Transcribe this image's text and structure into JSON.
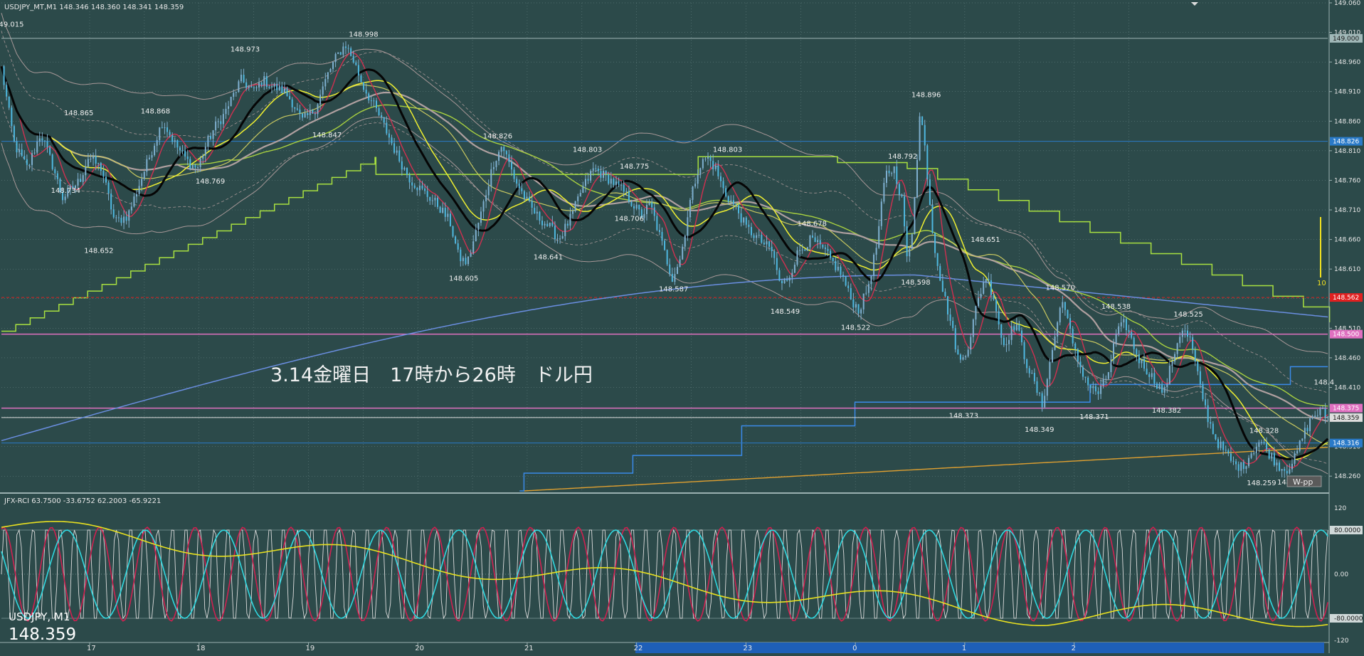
{
  "window": {
    "header": "USDJPY_MT,M1  148.346 148.360 148.341 148.359",
    "symbol_label": "USDJPY, M1",
    "last_price": "148.359"
  },
  "colors": {
    "background": "#2c4a4a",
    "grid": "#7f9a9a",
    "candle_up": "#7fb0d0",
    "candle_down": "#4fb8e0",
    "ma_black": "#050505",
    "ma_yellow": "#f0f030",
    "ma_olive": "#c8c860",
    "ma_crimson": "#d03050",
    "ma_green": "#a8d040",
    "ma_tan": "#b0a0a0",
    "bollinger": "#a89898",
    "ma_blue": "#6a8ee0",
    "ma_orange": "#e0a030",
    "step_green": "#a8e040",
    "step_blue": "#3a8ae8",
    "hline_blue": "#2a7ac8",
    "hline_magenta": "#e070c0",
    "hline_red": "#e02020",
    "rci_white": "#dddddd",
    "rci_red": "#d02050",
    "rci_cyan": "#30d8e0",
    "rci_yellow": "#e8e020"
  },
  "annotation": {
    "main_text": "3.14金曜日　17時から26時　ドル円",
    "w_pp_label": "W-pp",
    "vol_label": "10"
  },
  "chart_data": [
    {
      "type": "candlestick",
      "title": "USDJPY_MT,M1",
      "ylim": [
        148.235,
        149.06
      ],
      "y_ticks": [
        "149.060",
        "149.010",
        "148.960",
        "148.910",
        "148.860",
        "148.810",
        "148.760",
        "148.710",
        "148.660",
        "148.610",
        "148.560",
        "148.510",
        "148.460",
        "148.410",
        "148.360",
        "148.310",
        "148.260"
      ],
      "x_labels": [
        "17",
        "18",
        "19",
        "20",
        "21",
        "22",
        "23",
        "0",
        "1",
        "2"
      ],
      "close_path": [
        [
          0,
          148.95
        ],
        [
          0.015,
          148.82
        ],
        [
          0.03,
          148.78
        ],
        [
          0.045,
          148.84
        ],
        [
          0.06,
          148.78
        ],
        [
          0.07,
          148.73
        ],
        [
          0.09,
          148.76
        ],
        [
          0.1,
          148.8
        ],
        [
          0.115,
          148.78
        ],
        [
          0.125,
          148.72
        ],
        [
          0.13,
          148.69
        ],
        [
          0.145,
          148.7
        ],
        [
          0.155,
          148.74
        ],
        [
          0.165,
          148.78
        ],
        [
          0.175,
          148.82
        ],
        [
          0.185,
          148.86
        ],
        [
          0.2,
          148.82
        ],
        [
          0.215,
          148.79
        ],
        [
          0.225,
          148.78
        ],
        [
          0.235,
          148.82
        ],
        [
          0.245,
          148.85
        ],
        [
          0.255,
          148.87
        ],
        [
          0.265,
          148.9
        ],
        [
          0.275,
          148.93
        ],
        [
          0.29,
          148.91
        ],
        [
          0.3,
          148.93
        ],
        [
          0.31,
          148.92
        ],
        [
          0.325,
          148.91
        ],
        [
          0.335,
          148.89
        ],
        [
          0.345,
          148.86
        ],
        [
          0.36,
          148.88
        ],
        [
          0.375,
          148.94
        ],
        [
          0.385,
          148.97
        ],
        [
          0.395,
          148.99
        ],
        [
          0.405,
          148.96
        ],
        [
          0.415,
          148.92
        ],
        [
          0.43,
          148.88
        ],
        [
          0.44,
          148.85
        ],
        [
          0.455,
          148.8
        ],
        [
          0.47,
          148.76
        ],
        [
          0.485,
          148.74
        ],
        [
          0.5,
          148.72
        ],
        [
          0.515,
          148.69
        ],
        [
          0.525,
          148.63
        ],
        [
          0.535,
          148.62
        ],
        [
          0.55,
          148.7
        ],
        [
          0.565,
          148.79
        ],
        [
          0.575,
          148.82
        ],
        [
          0.59,
          148.76
        ],
        [
          0.605,
          148.72
        ],
        [
          0.615,
          148.7
        ],
        [
          0.63,
          148.68
        ],
        [
          0.64,
          148.66
        ],
        [
          0.655,
          148.7
        ],
        [
          0.665,
          148.74
        ],
        [
          0.68,
          148.78
        ],
        [
          0.7,
          148.76
        ],
        [
          0.715,
          148.74
        ],
        [
          0.725,
          148.72
        ],
        [
          0.735,
          148.7
        ],
        [
          0.745,
          148.72
        ],
        [
          0.755,
          148.67
        ],
        [
          0.765,
          148.62
        ],
        [
          0.77,
          148.595
        ],
        [
          0.78,
          148.63
        ],
        [
          0.79,
          148.72
        ],
        [
          0.8,
          148.78
        ],
        [
          0.81,
          148.8
        ],
        [
          0.82,
          148.78
        ],
        [
          0.83,
          148.74
        ],
        [
          0.845,
          148.71
        ],
        [
          0.855,
          148.68
        ],
        [
          0.87,
          148.66
        ],
        [
          0.885,
          148.64
        ],
        [
          0.895,
          148.58
        ],
        [
          0.905,
          148.6
        ],
        [
          0.915,
          148.64
        ],
        [
          0.93,
          148.66
        ],
        [
          0.945,
          148.64
        ],
        [
          0.955,
          148.62
        ],
        [
          0.965,
          148.6
        ],
        [
          0.975,
          148.56
        ],
        [
          0.985,
          148.54
        ],
        [
          0.995,
          148.58
        ],
        [
          1.005,
          148.65
        ],
        [
          1.015,
          148.77
        ],
        [
          1.025,
          148.78
        ],
        [
          1.035,
          148.72
        ],
        [
          1.04,
          148.62
        ],
        [
          1.045,
          148.66
        ],
        [
          1.055,
          148.88
        ],
        [
          1.06,
          148.82
        ],
        [
          1.07,
          148.66
        ],
        [
          1.08,
          148.58
        ],
        [
          1.09,
          148.52
        ],
        [
          1.1,
          148.45
        ],
        [
          1.11,
          148.48
        ],
        [
          1.12,
          148.55
        ],
        [
          1.13,
          148.6
        ],
        [
          1.14,
          148.56
        ],
        [
          1.15,
          148.48
        ],
        [
          1.165,
          148.52
        ],
        [
          1.175,
          148.46
        ],
        [
          1.185,
          148.42
        ],
        [
          1.195,
          148.38
        ],
        [
          1.205,
          148.46
        ],
        [
          1.215,
          148.54
        ],
        [
          1.22,
          148.56
        ],
        [
          1.23,
          148.48
        ],
        [
          1.24,
          148.44
        ],
        [
          1.25,
          148.41
        ],
        [
          1.26,
          148.4
        ],
        [
          1.27,
          148.43
        ],
        [
          1.28,
          148.5
        ],
        [
          1.29,
          148.52
        ],
        [
          1.305,
          148.46
        ],
        [
          1.315,
          148.44
        ],
        [
          1.325,
          148.42
        ],
        [
          1.335,
          148.4
        ],
        [
          1.345,
          148.46
        ],
        [
          1.355,
          148.51
        ],
        [
          1.365,
          148.49
        ],
        [
          1.375,
          148.42
        ],
        [
          1.385,
          148.36
        ],
        [
          1.395,
          148.32
        ],
        [
          1.405,
          148.3
        ],
        [
          1.415,
          148.28
        ],
        [
          1.425,
          148.275
        ],
        [
          1.435,
          148.3
        ],
        [
          1.445,
          148.32
        ],
        [
          1.455,
          148.3
        ],
        [
          1.465,
          148.28
        ],
        [
          1.475,
          148.27
        ],
        [
          1.485,
          148.29
        ],
        [
          1.495,
          148.33
        ],
        [
          1.505,
          148.36
        ],
        [
          1.515,
          148.37
        ],
        [
          1.523,
          148.359
        ]
      ],
      "price_labels": [
        {
          "x": 0.005,
          "y": 149.015,
          "label": "149.015"
        },
        {
          "x": 0.085,
          "y": 148.865,
          "label": "148.865"
        },
        {
          "x": 0.07,
          "y": 148.734,
          "label": "148.734"
        },
        {
          "x": 0.108,
          "y": 148.652,
          "label": "148.652"
        },
        {
          "x": 0.173,
          "y": 148.868,
          "label": "148.868"
        },
        {
          "x": 0.236,
          "y": 148.769,
          "label": "148.769"
        },
        {
          "x": 0.276,
          "y": 148.973,
          "label": "148.973"
        },
        {
          "x": 0.37,
          "y": 148.847,
          "label": "148.847"
        },
        {
          "x": 0.412,
          "y": 148.998,
          "label": "148.998"
        },
        {
          "x": 0.527,
          "y": 148.605,
          "label": "148.605"
        },
        {
          "x": 0.566,
          "y": 148.826,
          "label": "148.826"
        },
        {
          "x": 0.624,
          "y": 148.641,
          "label": "148.641"
        },
        {
          "x": 0.669,
          "y": 148.803,
          "label": "148.803"
        },
        {
          "x": 0.723,
          "y": 148.775,
          "label": "148.775"
        },
        {
          "x": 0.717,
          "y": 148.706,
          "label": "148.706"
        },
        {
          "x": 0.768,
          "y": 148.587,
          "label": "148.587"
        },
        {
          "x": 0.83,
          "y": 148.803,
          "label": "148.803"
        },
        {
          "x": 0.896,
          "y": 148.549,
          "label": "148.549"
        },
        {
          "x": 0.927,
          "y": 148.678,
          "label": "148.678"
        },
        {
          "x": 0.977,
          "y": 148.522,
          "label": "148.522"
        },
        {
          "x": 1.046,
          "y": 148.598,
          "label": "148.598"
        },
        {
          "x": 1.031,
          "y": 148.792,
          "label": "148.792"
        },
        {
          "x": 1.058,
          "y": 148.896,
          "label": "148.896"
        },
        {
          "x": 1.101,
          "y": 148.373,
          "label": "148.373"
        },
        {
          "x": 1.126,
          "y": 148.651,
          "label": "148.651"
        },
        {
          "x": 1.188,
          "y": 148.349,
          "label": "148.349"
        },
        {
          "x": 1.212,
          "y": 148.57,
          "label": "148.570"
        },
        {
          "x": 1.251,
          "y": 148.371,
          "label": "148.371"
        },
        {
          "x": 1.276,
          "y": 148.538,
          "label": "148.538"
        },
        {
          "x": 1.334,
          "y": 148.382,
          "label": "148.382"
        },
        {
          "x": 1.359,
          "y": 148.525,
          "label": "148.525"
        },
        {
          "x": 1.446,
          "y": 148.328,
          "label": "148.328"
        },
        {
          "x": 1.443,
          "y": 148.259,
          "label": "148.259"
        },
        {
          "x": 1.478,
          "y": 148.26,
          "label": "148.26"
        },
        {
          "x": 1.52,
          "y": 148.41,
          "label": "148.4"
        }
      ],
      "horizontal_lines": [
        {
          "price": 149.0,
          "color": "#a0b8b8",
          "label": "149.000"
        },
        {
          "price": 148.826,
          "color": "#2a7ac8",
          "label": "148.826"
        },
        {
          "price": 148.562,
          "color": "#e02020",
          "label": "148.562"
        },
        {
          "price": 148.5,
          "color": "#e070c0",
          "label": "148.500"
        },
        {
          "price": 148.375,
          "color": "#e070c0",
          "label": "148.375"
        },
        {
          "price": 148.359,
          "color": "#dddddd",
          "label": "148.359"
        },
        {
          "price": 148.316,
          "color": "#2a7ac8",
          "label": "148.316"
        }
      ]
    },
    {
      "type": "line",
      "title": "JFX-RCI 63.7500 -33.6752 62.2003 -65.9221",
      "ylim": [
        -120,
        120
      ],
      "y_ticks": [
        "120",
        "80.0000",
        "0.00",
        "-80.0000",
        "-120"
      ],
      "series": [
        {
          "name": "RCI 63.7500",
          "color": "#dddddd",
          "cycle": 0.016,
          "values_range": [
            -80,
            80
          ]
        },
        {
          "name": "RCI -33.6752",
          "color": "#d02050",
          "cycle": 0.055,
          "values_range": [
            -85,
            85
          ]
        },
        {
          "name": "RCI 62.2003",
          "color": "#30d8e0",
          "cycle": 0.09,
          "values_range": [
            -80,
            80
          ]
        },
        {
          "name": "RCI -65.9221",
          "color": "#e8e020",
          "cycle": 0.6,
          "values_range": [
            -75,
            85
          ]
        }
      ]
    }
  ]
}
